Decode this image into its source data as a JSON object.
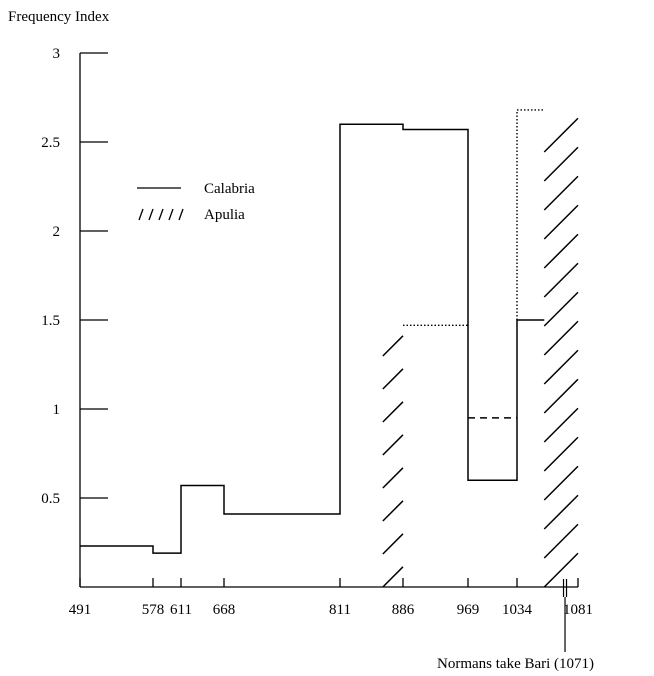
{
  "chart_data": {
    "type": "line",
    "ylabel": "Frequency Index",
    "xlabel": "",
    "yticks": [
      {
        "value": 0.5,
        "label": "0.5"
      },
      {
        "value": 1,
        "label": "1"
      },
      {
        "value": 1.5,
        "label": "1.5"
      },
      {
        "value": 2,
        "label": "2"
      },
      {
        "value": 2.5,
        "label": "2.5"
      },
      {
        "value": 3,
        "label": "3"
      }
    ],
    "xticks": [
      {
        "value": 491,
        "label": "491"
      },
      {
        "value": 578,
        "label": "578"
      },
      {
        "value": 611,
        "label": "611"
      },
      {
        "value": 668,
        "label": "668"
      },
      {
        "value": 811,
        "label": "811"
      },
      {
        "value": 886,
        "label": "886"
      },
      {
        "value": 969,
        "label": "969"
      },
      {
        "value": 1034,
        "label": "1034"
      },
      {
        "value": 1081,
        "label": "1081"
      }
    ],
    "ylim": [
      0,
      3
    ],
    "xlim": [
      491,
      1081
    ],
    "grid": false,
    "legend": [
      {
        "name": "Calabria",
        "symbol": "——"
      },
      {
        "name": "Apulia",
        "symbol": "/ / / / /"
      }
    ],
    "series": [
      {
        "name": "Calabria",
        "style": "solid",
        "steps": [
          {
            "x0": 491,
            "x1": 578,
            "y": 0.23
          },
          {
            "x0": 578,
            "x1": 611,
            "y": 0.19
          },
          {
            "x0": 611,
            "x1": 668,
            "y": 0.57
          },
          {
            "x0": 668,
            "x1": 811,
            "y": 0.41
          },
          {
            "x0": 811,
            "x1": 886,
            "y": 2.6
          },
          {
            "x0": 886,
            "x1": 969,
            "y": 2.57
          },
          {
            "x0": 969,
            "x1": 1034,
            "y": 0.6
          },
          {
            "x0": 1034,
            "x1": 1055,
            "y": 1.5
          }
        ]
      },
      {
        "name": "Apulia",
        "style": "hatched",
        "hatch_regions": [
          {
            "x0": 862,
            "x1": 886,
            "y_top": 1.47
          },
          {
            "x0": 1055,
            "x1": 1081,
            "y_top": 2.7
          }
        ],
        "dotted_levels": [
          {
            "x0": 886,
            "x1": 969,
            "y": 1.47
          },
          {
            "x0": 1034,
            "x1": 1055,
            "y": 2.68
          }
        ],
        "dotted_verticals": [
          {
            "x": 1034,
            "y0": 1.5,
            "y1": 2.68
          }
        ],
        "dashed_levels": [
          {
            "x0": 969,
            "x1": 1034,
            "y": 0.95
          }
        ]
      }
    ],
    "annotations": [
      {
        "text": "Normans take Bari (1071)",
        "x": 1071
      }
    ]
  }
}
